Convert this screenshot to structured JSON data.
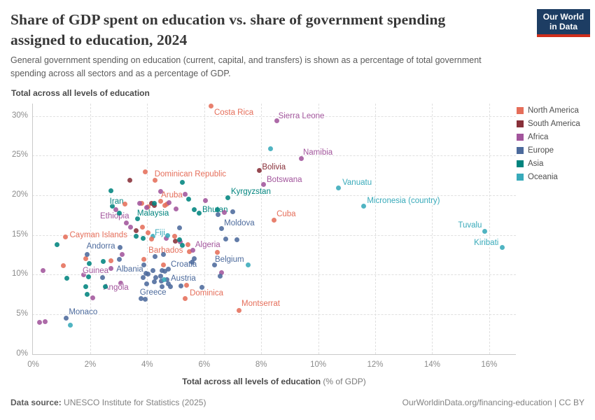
{
  "header": {
    "title_line1": "Share of GDP spent on education vs. share of government spending",
    "title_line2": "assigned to education, 2024",
    "subtitle_line1": "General government spending on education (current, capital, and transfers) is shown as a percentage of total government",
    "subtitle_line2": "spending across all sectors and as a percentage of GDP.",
    "logo_line1": "Our World",
    "logo_line2": "in Data"
  },
  "footer": {
    "source_label": "Data source:",
    "source_value": " UNESCO Institute for Statistics (2025)",
    "link": "OurWorldinData.org/financing-education | CC BY"
  },
  "chart_data": {
    "type": "scatter",
    "title": "Share of GDP spent on education vs. share of government spending assigned to education, 2024",
    "x_axis": {
      "label_bold": "Total across all levels of education",
      "label_light": " (% of GDP)",
      "tick_values": [
        0,
        2,
        4,
        6,
        8,
        10,
        12,
        14,
        16
      ],
      "tick_labels": [
        "0%",
        "2%",
        "4%",
        "6%",
        "8%",
        "10%",
        "12%",
        "14%",
        "16%"
      ],
      "range": [
        0,
        16.9
      ],
      "grid": "dashed"
    },
    "y_axis": {
      "label": "Total across all levels of education",
      "tick_values": [
        0,
        5,
        10,
        15,
        20,
        25,
        30
      ],
      "tick_labels": [
        "0%",
        "5%",
        "10%",
        "15%",
        "20%",
        "25%",
        "30%"
      ],
      "range": [
        0,
        31.6
      ],
      "grid": "dashed"
    },
    "legend": [
      {
        "code": "NA",
        "label": "North America",
        "color": "#e56e5a"
      },
      {
        "code": "SA",
        "label": "South America",
        "color": "#883039"
      },
      {
        "code": "AF",
        "label": "Africa",
        "color": "#a2559c"
      },
      {
        "code": "EU",
        "label": "Europe",
        "color": "#4c6a9c"
      },
      {
        "code": "AS",
        "label": "Asia",
        "color": "#00847e"
      },
      {
        "code": "OC",
        "label": "Oceania",
        "color": "#38aaba"
      }
    ],
    "points": [
      [
        6.25,
        31.2,
        "NA",
        "Costa Rica",
        4,
        3
      ],
      [
        8.55,
        29.35,
        "AF",
        "Sierra Leone",
        2,
        -13
      ],
      [
        9.42,
        24.65,
        "AF",
        "Namibia",
        2,
        -14
      ],
      [
        7.93,
        23.1,
        "SA",
        "Bolivia",
        4,
        -11
      ],
      [
        8.07,
        21.35,
        "AF",
        "Botswana",
        5,
        -13
      ],
      [
        10.7,
        20.9,
        "OC",
        "Vanuatu",
        6,
        -14
      ],
      [
        11.59,
        18.6,
        "OC",
        "Micronesia (country)",
        5,
        -14
      ],
      [
        8.44,
        16.9,
        "NA",
        "Cuba",
        4,
        -14
      ],
      [
        15.84,
        15.45,
        "OC",
        "Tuvalu",
        -38,
        -14
      ],
      [
        16.45,
        13.4,
        "OC",
        "Kiribati",
        -40,
        -13
      ],
      [
        7.21,
        5.45,
        "NA",
        "Montserrat",
        4,
        -16
      ],
      [
        4.28,
        21.85,
        "NA",
        "Dominican Republic",
        -1,
        -15
      ],
      [
        4.46,
        19.2,
        "NA",
        "Aruba",
        1,
        -15
      ],
      [
        6.84,
        19.7,
        "AS",
        "Kyrgyzstan",
        4,
        -14
      ],
      [
        2.78,
        18.65,
        "AS",
        "Iran",
        -4,
        -12
      ],
      [
        2.91,
        18.2,
        "AF",
        "Ethiopia",
        -23,
        4
      ],
      [
        3.67,
        17.05,
        "AS",
        "Malaysia",
        -1,
        -13
      ],
      [
        5.81,
        17.7,
        "AS",
        "Bhutan",
        5,
        -11
      ],
      [
        6.6,
        15.8,
        "EU",
        "Moldova",
        4,
        -14
      ],
      [
        1.13,
        14.75,
        "NA",
        "Cayman Islands",
        6,
        -8
      ],
      [
        4.19,
        14.85,
        "OC",
        "Fiji",
        3,
        -10
      ],
      [
        3.05,
        13.45,
        "EU",
        "Andorra",
        -48,
        -7
      ],
      [
        5.47,
        12.85,
        "NA",
        "Barbados",
        -58,
        -8
      ],
      [
        5.61,
        13.1,
        "AF",
        "Algeria",
        3,
        -13
      ],
      [
        6.35,
        11.25,
        "EU",
        "Belgium",
        1,
        -13
      ],
      [
        4.73,
        10.7,
        "EU",
        "Croatia",
        4,
        -12
      ],
      [
        4.68,
        9.4,
        "EU",
        "Austria",
        6,
        -7
      ],
      [
        1.78,
        9.95,
        "AF",
        "Guinea",
        -2,
        -12
      ],
      [
        3.95,
        10.2,
        "EU",
        "Albania",
        -42,
        -11
      ],
      [
        3.08,
        8.95,
        "AF",
        "Angola",
        -25,
        1
      ],
      [
        3.79,
        6.95,
        "EU",
        "Greece",
        -2,
        -15
      ],
      [
        5.32,
        6.95,
        "NA",
        "Dominica",
        7,
        -14
      ],
      [
        1.15,
        4.55,
        "EU",
        "Monaco",
        4,
        -14
      ],
      [
        3.93,
        22.95,
        "NA"
      ],
      [
        3.8,
        19.0,
        "NA"
      ],
      [
        3.21,
        18.85,
        "NA"
      ],
      [
        4.03,
        18.58,
        "NA"
      ],
      [
        4.68,
        18.93,
        "NA"
      ],
      [
        4.63,
        18.73,
        "NA"
      ],
      [
        3.82,
        15.95,
        "NA"
      ],
      [
        4.03,
        15.25,
        "NA"
      ],
      [
        4.16,
        14.45,
        "NA"
      ],
      [
        4.96,
        14.85,
        "NA"
      ],
      [
        5.43,
        13.8,
        "NA"
      ],
      [
        6.47,
        12.8,
        "NA"
      ],
      [
        1.85,
        12.05,
        "NA"
      ],
      [
        1.06,
        11.1,
        "NA"
      ],
      [
        2.72,
        11.75,
        "NA"
      ],
      [
        3.89,
        11.9,
        "NA"
      ],
      [
        4.56,
        11.25,
        "NA"
      ],
      [
        5.39,
        8.7,
        "NA"
      ],
      [
        3.38,
        21.9,
        "SA"
      ],
      [
        4.16,
        18.95,
        "SA"
      ],
      [
        4.26,
        18.75,
        "SA"
      ],
      [
        3.61,
        15.5,
        "SA"
      ],
      [
        4.98,
        14.25,
        "SA"
      ],
      [
        3.73,
        18.95,
        "AF"
      ],
      [
        3.98,
        18.45,
        "AF"
      ],
      [
        4.46,
        20.5,
        "AF"
      ],
      [
        5.34,
        20.1,
        "AF"
      ],
      [
        4.77,
        19.1,
        "AF"
      ],
      [
        5.02,
        18.3,
        "AF"
      ],
      [
        6.04,
        19.3,
        "AF"
      ],
      [
        6.7,
        17.85,
        "AF"
      ],
      [
        3.26,
        16.5,
        "AF"
      ],
      [
        3.42,
        15.95,
        "AF"
      ],
      [
        4.66,
        14.55,
        "AF"
      ],
      [
        5.16,
        14.1,
        "AF"
      ],
      [
        0.35,
        10.5,
        "AF"
      ],
      [
        2.72,
        10.8,
        "AF"
      ],
      [
        3.13,
        12.5,
        "AF"
      ],
      [
        6.6,
        10.25,
        "AF"
      ],
      [
        2.09,
        7.05,
        "AF"
      ],
      [
        0.22,
        4.0,
        "AF"
      ],
      [
        0.42,
        4.1,
        "AF"
      ],
      [
        6.49,
        17.55,
        "EU"
      ],
      [
        7.01,
        17.9,
        "EU"
      ],
      [
        5.14,
        15.85,
        "EU"
      ],
      [
        6.76,
        14.45,
        "EU"
      ],
      [
        7.15,
        14.35,
        "EU"
      ],
      [
        1.89,
        12.55,
        "EU"
      ],
      [
        3.01,
        11.9,
        "EU"
      ],
      [
        4.28,
        12.3,
        "EU"
      ],
      [
        4.57,
        12.5,
        "EU"
      ],
      [
        5.65,
        12.05,
        "EU"
      ],
      [
        5.57,
        11.6,
        "EU"
      ],
      [
        3.87,
        11.25,
        "EU"
      ],
      [
        4.53,
        10.55,
        "EU"
      ],
      [
        4.63,
        10.45,
        "EU"
      ],
      [
        4.2,
        10.5,
        "EU"
      ],
      [
        4.03,
        10.05,
        "EU"
      ],
      [
        3.85,
        9.65,
        "EU"
      ],
      [
        4.3,
        9.65,
        "EU"
      ],
      [
        4.47,
        9.85,
        "EU"
      ],
      [
        4.49,
        9.15,
        "EU"
      ],
      [
        4.26,
        9.1,
        "EU"
      ],
      [
        2.42,
        9.6,
        "EU"
      ],
      [
        6.55,
        9.85,
        "EU"
      ],
      [
        4.75,
        8.8,
        "EU"
      ],
      [
        4.81,
        8.45,
        "EU"
      ],
      [
        4.53,
        8.5,
        "EU"
      ],
      [
        5.18,
        8.6,
        "EU"
      ],
      [
        5.92,
        8.4,
        "EU"
      ],
      [
        3.99,
        8.8,
        "EU"
      ],
      [
        3.94,
        6.9,
        "EU"
      ],
      [
        5.22,
        21.65,
        "AS"
      ],
      [
        2.72,
        20.6,
        "AS"
      ],
      [
        5.45,
        19.5,
        "AS"
      ],
      [
        4.24,
        19.0,
        "AS"
      ],
      [
        5.64,
        18.15,
        "AS"
      ],
      [
        6.45,
        18.15,
        "AS"
      ],
      [
        3.03,
        17.75,
        "AS"
      ],
      [
        0.84,
        13.8,
        "AS"
      ],
      [
        3.85,
        14.6,
        "AS"
      ],
      [
        3.6,
        14.8,
        "AS"
      ],
      [
        5.14,
        14.4,
        "AS"
      ],
      [
        5.22,
        13.65,
        "AS"
      ],
      [
        2.45,
        11.65,
        "AS"
      ],
      [
        1.96,
        11.4,
        "AS"
      ],
      [
        1.17,
        9.55,
        "AS"
      ],
      [
        1.93,
        9.75,
        "AS"
      ],
      [
        1.85,
        8.45,
        "AS"
      ],
      [
        2.52,
        8.5,
        "AS"
      ],
      [
        1.9,
        7.55,
        "AS"
      ],
      [
        8.32,
        25.88,
        "OC"
      ],
      [
        7.53,
        11.2,
        "OC"
      ],
      [
        4.71,
        14.9,
        "OC"
      ],
      [
        4.6,
        9.4,
        "OC"
      ],
      [
        1.31,
        3.6,
        "OC"
      ]
    ]
  }
}
